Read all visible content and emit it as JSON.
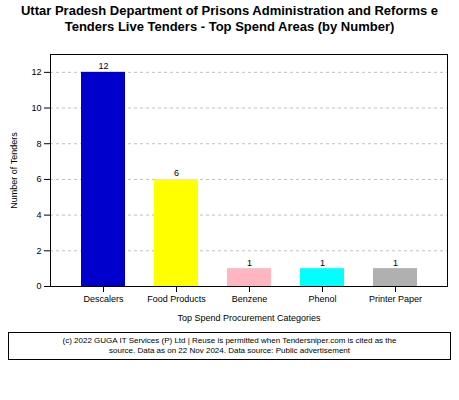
{
  "chart_data": {
    "type": "bar",
    "title": "Uttar Pradesh Department of Prisons Administration and Reforms e Tenders Live Tenders - Top Spend Areas (by Number)",
    "categories": [
      "Descalers",
      "Food Products",
      "Benzene",
      "Phenol",
      "Printer Paper"
    ],
    "values": [
      12,
      6,
      1,
      1,
      1
    ],
    "colors": [
      "#0000CC",
      "#FFFF00",
      "#FFB6C1",
      "#00FFFF",
      "#B0B0B0"
    ],
    "xlabel": "Top Spend Procurement Categories",
    "ylabel": "Number of Tenders",
    "ylim": [
      0,
      13
    ],
    "yticks": [
      0,
      2,
      4,
      6,
      8,
      10,
      12
    ],
    "grid": true,
    "data_labels": true,
    "footnote": [
      "(c) 2022 GUGA IT Services (P) Ltd | Reuse is permitted when Tendersniper.com is cited as the",
      "source. Data as on 22 Nov 2024. Data source: Public advertisement"
    ]
  }
}
